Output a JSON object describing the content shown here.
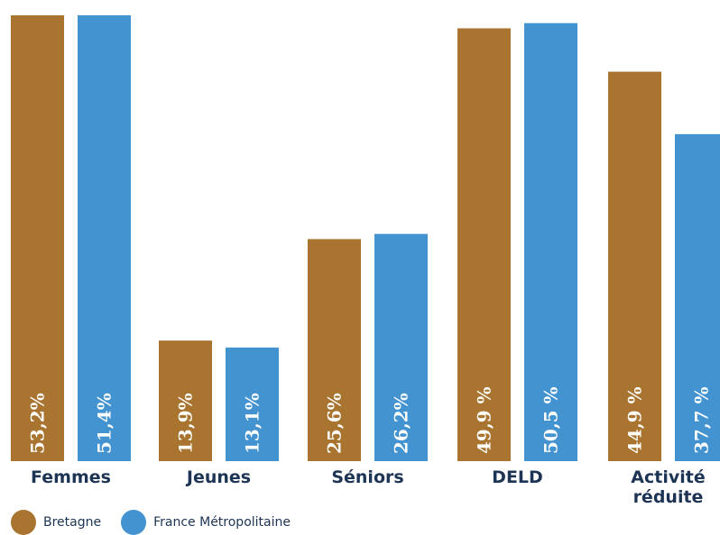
{
  "chart_data": {
    "type": "bar",
    "categories": [
      "Femmes",
      "Jeunes",
      "Séniors",
      "DELD",
      "Activité réduite"
    ],
    "category_lines": [
      [
        "Femmes"
      ],
      [
        "Jeunes"
      ],
      [
        "Séniors"
      ],
      [
        "DELD"
      ],
      [
        "Activité",
        "réduite"
      ]
    ],
    "series": [
      {
        "name": "Bretagne",
        "color": "#a8742f",
        "values": [
          53.2,
          13.9,
          25.6,
          49.9,
          44.9
        ],
        "labels": [
          "53,2%",
          "13,9%",
          "25,6%",
          "49,9 %",
          "44,9 %"
        ]
      },
      {
        "name": "France Métropolitaine",
        "color": "#4393d1",
        "values": [
          51.4,
          13.1,
          26.2,
          50.5,
          37.7
        ],
        "labels": [
          "51,4%",
          "13,1%",
          "26,2%",
          "50,5 %",
          "37,7 %"
        ]
      }
    ],
    "ylim": [
      0,
      51.4
    ],
    "grid": false,
    "legend_position": "bottom-left"
  }
}
